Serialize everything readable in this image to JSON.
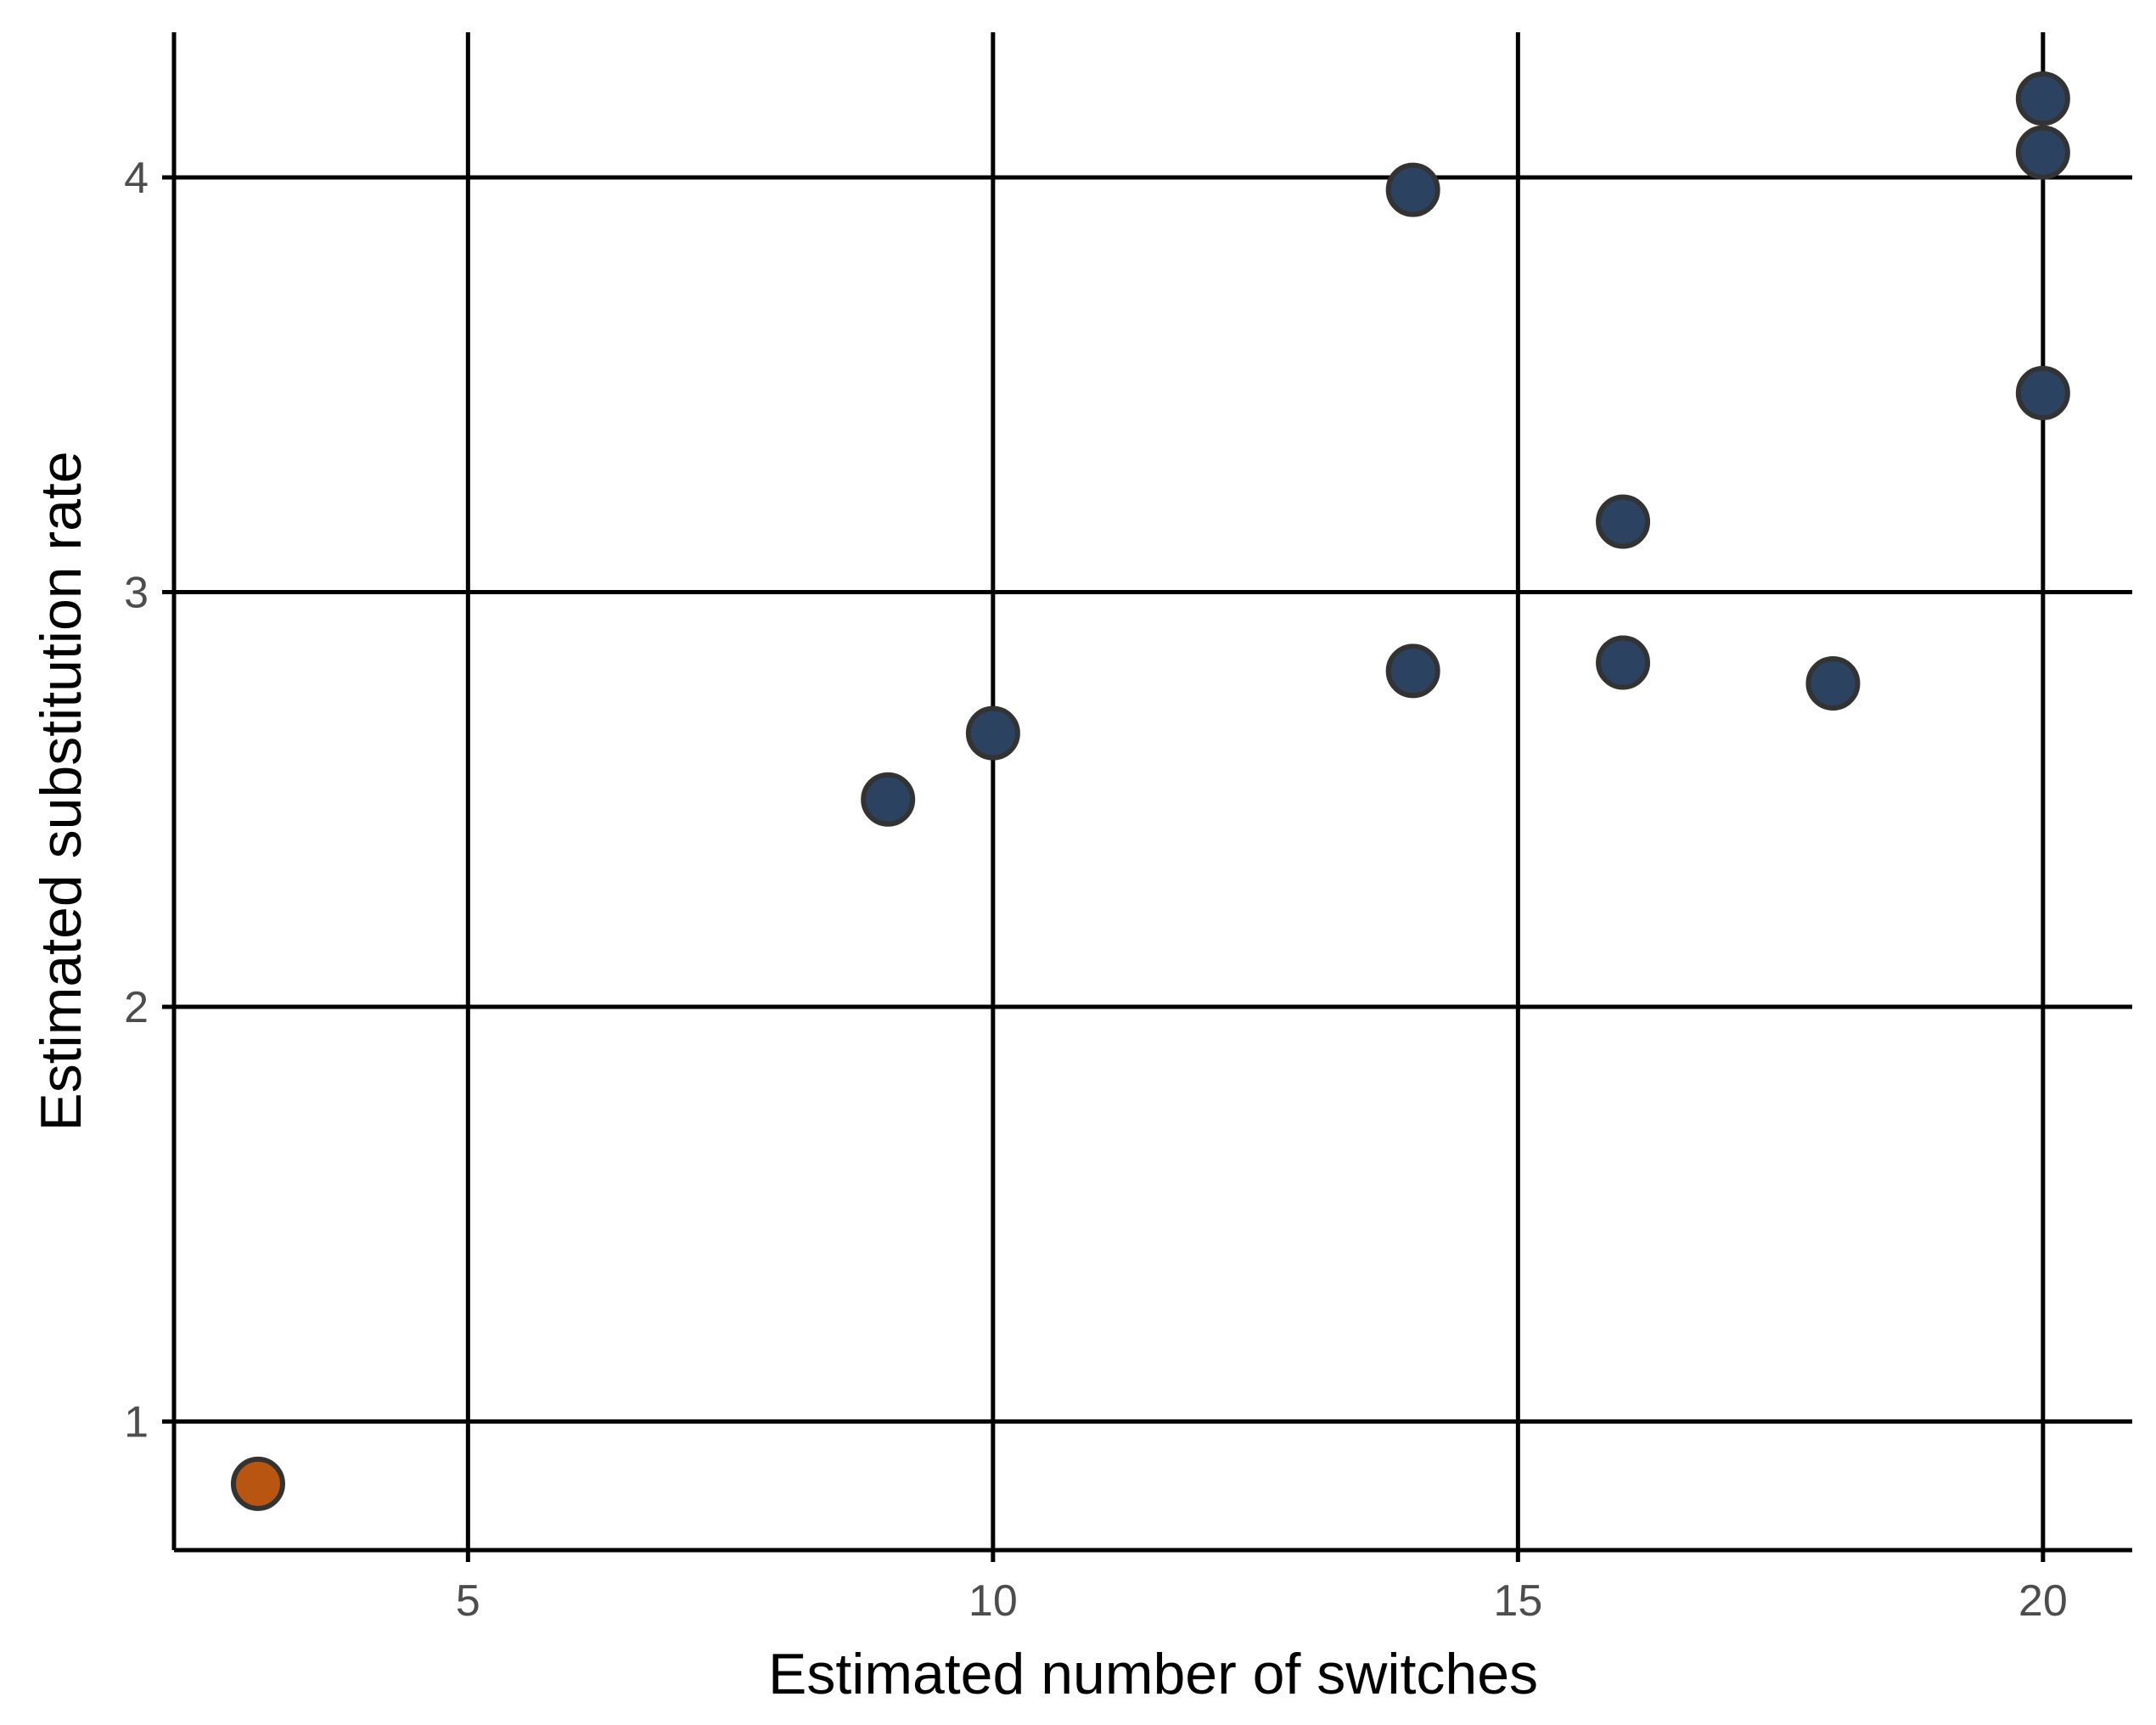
{
  "chart_data": {
    "type": "scatter",
    "title": "",
    "xlabel": "Estimated number of switches",
    "ylabel": "Estimated substitution rate",
    "xlim": [
      2.2,
      20.85
    ],
    "ylim": [
      0.69,
      4.35
    ],
    "x_ticks": [
      5,
      10,
      15,
      20
    ],
    "y_ticks": [
      1,
      2,
      3,
      4
    ],
    "x_tick_labels": [
      "5",
      "10",
      "15",
      "20"
    ],
    "y_tick_labels": [
      "1",
      "2",
      "3",
      "4"
    ],
    "grid": true,
    "legend": "none",
    "series": [
      {
        "color": "#2b4360",
        "points": [
          {
            "x": 9,
            "y": 2.5
          },
          {
            "x": 10,
            "y": 2.66
          },
          {
            "x": 14,
            "y": 3.97
          },
          {
            "x": 14,
            "y": 2.81
          },
          {
            "x": 16,
            "y": 3.17
          },
          {
            "x": 16,
            "y": 2.83
          },
          {
            "x": 18,
            "y": 2.78
          },
          {
            "x": 20,
            "y": 4.19
          },
          {
            "x": 20,
            "y": 4.06
          },
          {
            "x": 20,
            "y": 3.48
          }
        ]
      },
      {
        "color": "#b85510",
        "points": [
          {
            "x": 3,
            "y": 0.85
          }
        ]
      }
    ]
  }
}
